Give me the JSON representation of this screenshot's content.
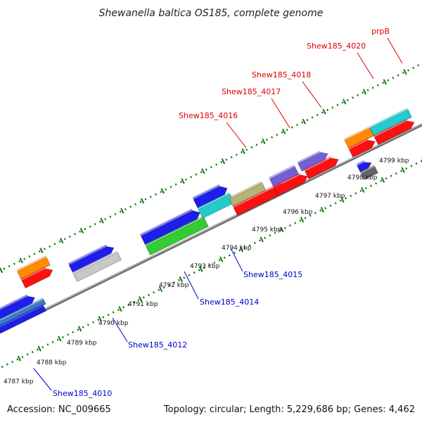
{
  "title": "Shewanella baltica OS185, complete genome",
  "footer": {
    "accession": "Accession: NC_009665",
    "summary": "Topology: circular; Length: 5,229,686 bp; Genes: 4,462"
  },
  "colors": {
    "label_forward": "#dd0000",
    "label_reverse": "#0000cc",
    "backbone": "#8a8a8a",
    "tick_dots": "#117711"
  },
  "ruler_labels": [
    "4787 kbp",
    "4788 kbp",
    "4789 kbp",
    "4790 kbp",
    "4791 kbp",
    "4792 kbp",
    "4793 kbp",
    "4794 kbp",
    "4795 kbp",
    "4796 kbp",
    "4797 kbp",
    "4798 kbp",
    "4799 kbp"
  ],
  "gene_labels": [
    {
      "text": "Shew185_4010",
      "strand": "reverse"
    },
    {
      "text": "Shew185_4012",
      "strand": "reverse"
    },
    {
      "text": "Shew185_4014",
      "strand": "reverse"
    },
    {
      "text": "Shew185_4015",
      "strand": "reverse"
    },
    {
      "text": "Shew185_4016",
      "strand": "forward"
    },
    {
      "text": "Shew185_4017",
      "strand": "forward"
    },
    {
      "text": "Shew185_4018",
      "strand": "forward"
    },
    {
      "text": "Shew185_4020",
      "strand": "forward"
    },
    {
      "text": "prpB",
      "strand": "forward"
    }
  ]
}
